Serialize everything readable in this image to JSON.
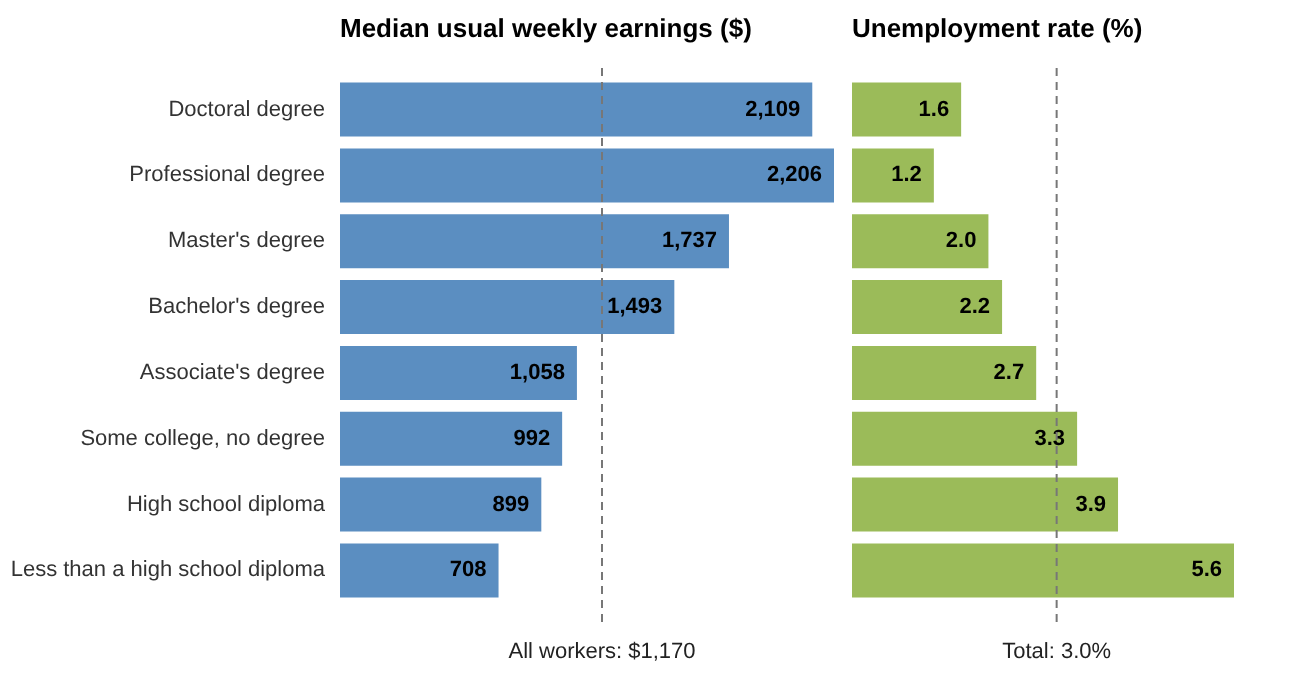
{
  "chart_data": [
    {
      "type": "bar",
      "orientation": "horizontal",
      "title": "Median usual weekly earnings ($)",
      "categories": [
        "Doctoral degree",
        "Professional degree",
        "Master's degree",
        "Bachelor's degree",
        "Associate's degree",
        "Some college, no degree",
        "High school diploma",
        "Less than a high school diploma"
      ],
      "values": [
        2109,
        2206,
        1737,
        1493,
        1058,
        992,
        899,
        708
      ],
      "value_labels": [
        "2,109",
        "2,206",
        "1,737",
        "1,493",
        "1,058",
        "992",
        "899",
        "708"
      ],
      "color": "#5b8ec1",
      "xlim": [
        0,
        2206
      ],
      "tick_labels": "y",
      "ref_lines": [
        {
          "axis": "x",
          "value": 1170,
          "label": "All workers: $1,170",
          "line_style": "dashed"
        }
      ]
    },
    {
      "type": "bar",
      "orientation": "horizontal",
      "title": "Unemployment rate (%)",
      "categories": [
        "Doctoral degree",
        "Professional degree",
        "Master's degree",
        "Bachelor's degree",
        "Associate's degree",
        "Some college, no degree",
        "High school diploma",
        "Less than a high school diploma"
      ],
      "values": [
        1.6,
        1.2,
        2.0,
        2.2,
        2.7,
        3.3,
        3.9,
        5.6
      ],
      "value_labels": [
        "1.6",
        "1.2",
        "2.0",
        "2.2",
        "2.7",
        "3.3",
        "3.9",
        "5.6"
      ],
      "color": "#9bbb59",
      "xlim": [
        0,
        5.6
      ],
      "tick_labels": false,
      "ref_lines": [
        {
          "axis": "x",
          "value": 3.0,
          "label": "Total: 3.0%",
          "line_style": "dashed"
        }
      ]
    }
  ]
}
